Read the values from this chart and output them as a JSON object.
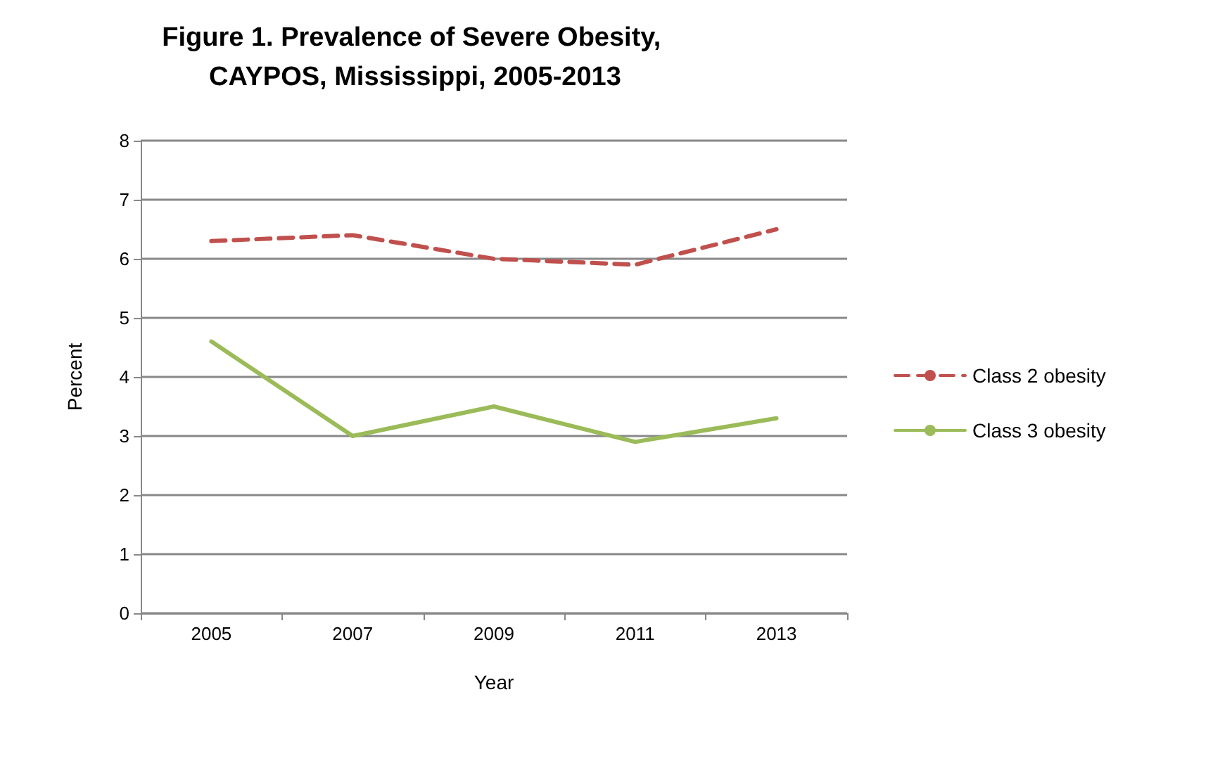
{
  "chart_data": {
    "type": "line",
    "title": "Figure 1. Prevalence of Severe Obesity, CAYPOS, Mississippi, 2005-2013",
    "xlabel": "Year",
    "ylabel": "Percent",
    "categories": [
      "2005",
      "2007",
      "2009",
      "2011",
      "2013"
    ],
    "series": [
      {
        "name": "Class 2 obesity",
        "color": "#c0504d",
        "line_style": "dashed",
        "values": [
          6.3,
          6.4,
          6.0,
          5.9,
          6.5
        ]
      },
      {
        "name": "Class 3 obesity",
        "color": "#9bbb59",
        "line_style": "solid",
        "values": [
          4.6,
          3.0,
          3.5,
          2.9,
          3.3
        ]
      }
    ],
    "ylim": [
      0,
      8
    ],
    "yticks": [
      0,
      1,
      2,
      3,
      4,
      5,
      6,
      7,
      8
    ],
    "grid": "y",
    "legend": "right",
    "marker": "none"
  }
}
